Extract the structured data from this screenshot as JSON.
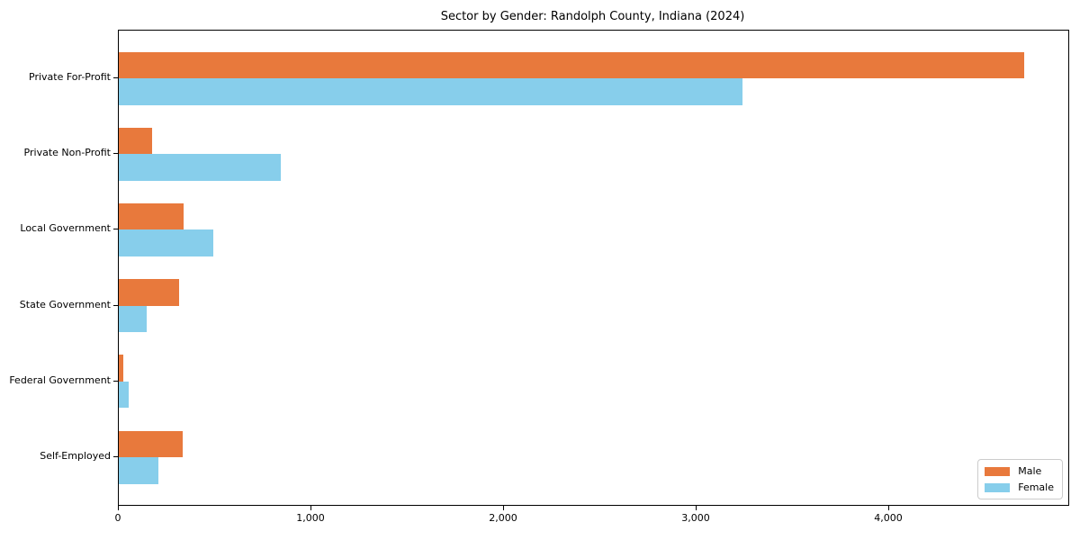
{
  "figure": {
    "title": "Sector by Gender: Randolph County, Indiana (2024)"
  },
  "chart_data": {
    "type": "bar",
    "orientation": "horizontal",
    "title": "Sector by Gender: Randolph County, Indiana (2024)",
    "categories": [
      "Private For-Profit",
      "Private Non-Profit",
      "Local Government",
      "State Government",
      "Federal Government",
      "Self-Employed"
    ],
    "series": [
      {
        "name": "Male",
        "color": "#e8793c",
        "values": [
          4700,
          175,
          335,
          315,
          25,
          330
        ]
      },
      {
        "name": "Female",
        "color": "#87ceeb",
        "values": [
          3240,
          840,
          490,
          145,
          50,
          205
        ]
      }
    ],
    "xlabel": "",
    "ylabel": "",
    "xlim": [
      0,
      4930
    ],
    "xticks": [
      {
        "value": 0,
        "label": "0"
      },
      {
        "value": 1000,
        "label": "1,000"
      },
      {
        "value": 2000,
        "label": "2,000"
      },
      {
        "value": 3000,
        "label": "3,000"
      },
      {
        "value": 4000,
        "label": "4,000"
      }
    ],
    "grid": false,
    "legend": {
      "position": "lower right",
      "entries": [
        "Male",
        "Female"
      ]
    }
  }
}
